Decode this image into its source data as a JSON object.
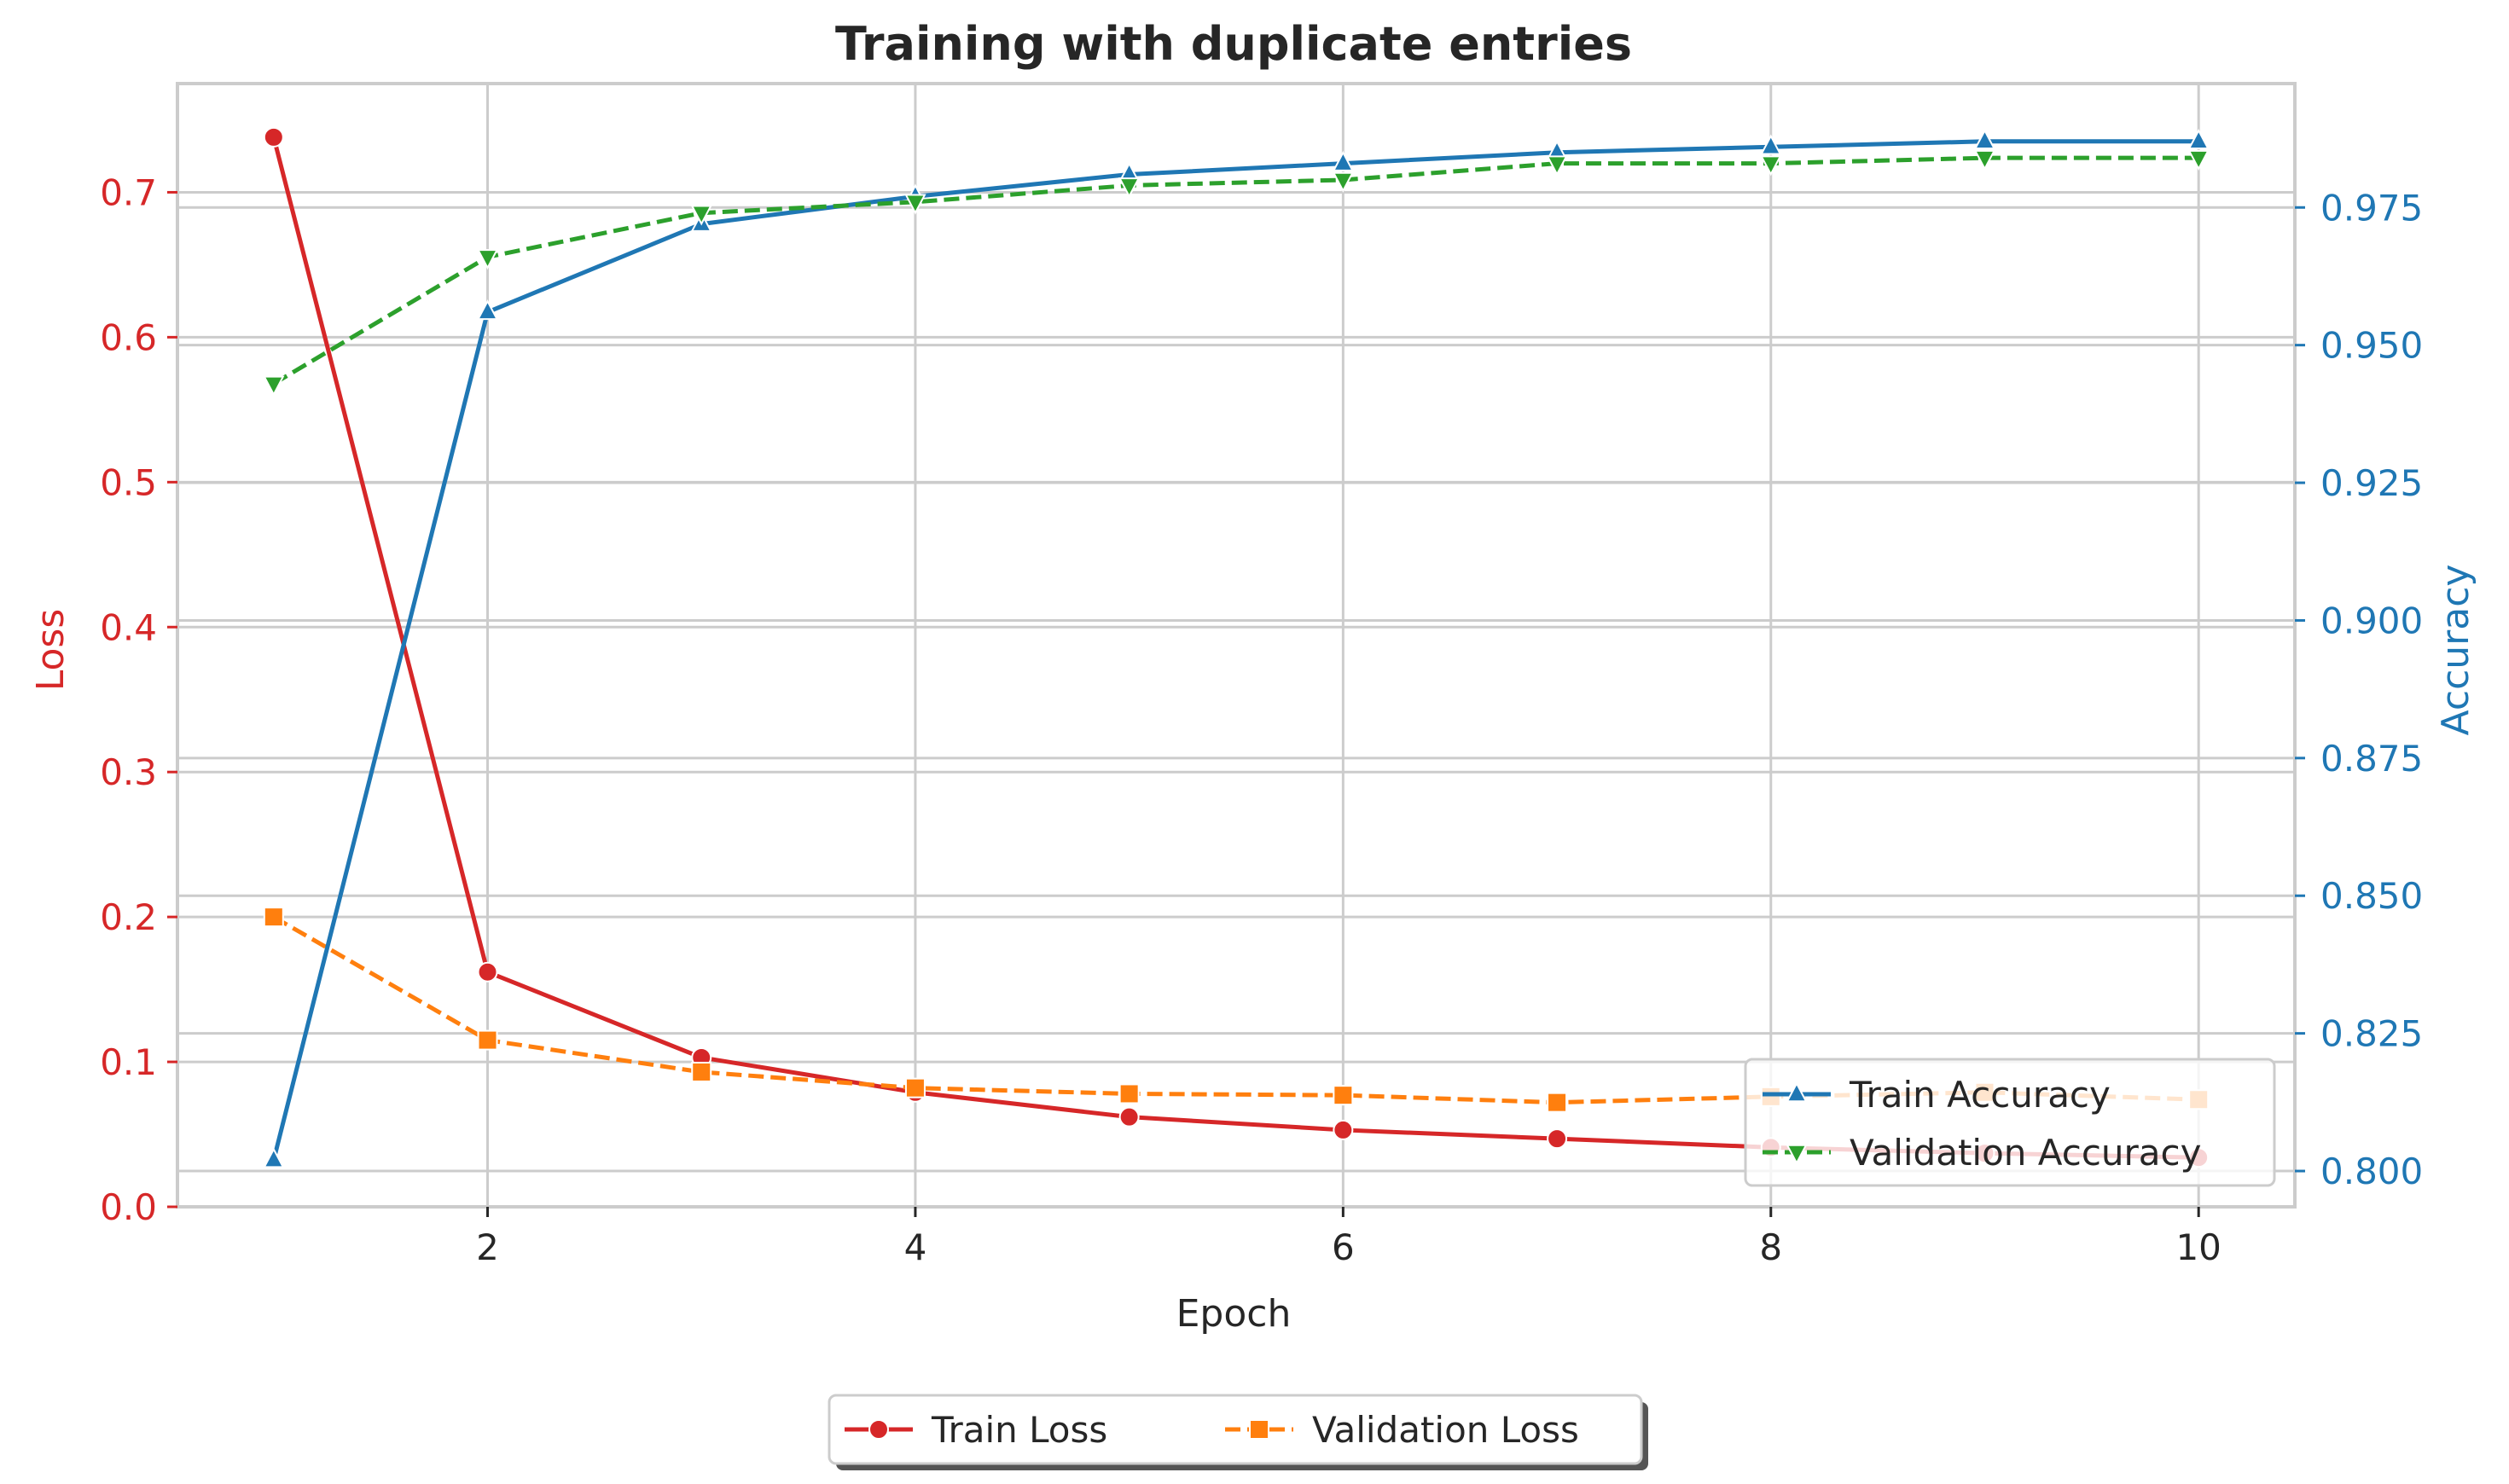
{
  "chart_data": {
    "type": "line",
    "title": "Training with duplicate entries",
    "xlabel": "Epoch",
    "ylabel_left": "Loss",
    "ylabel_right": "Accuracy",
    "xlim": [
      0.55,
      10.45
    ],
    "ylim_left": [
      0.0,
      0.775
    ],
    "ylim_right": [
      0.7935,
      0.9975
    ],
    "x_ticks": [
      2,
      4,
      6,
      8,
      10
    ],
    "y_ticks_left": [
      0.0,
      0.1,
      0.2,
      0.3,
      0.4,
      0.5,
      0.6,
      0.7
    ],
    "y_ticks_right": [
      0.8,
      0.825,
      0.85,
      0.875,
      0.9,
      0.925,
      0.95,
      0.975
    ],
    "grid": true,
    "x": [
      1,
      2,
      3,
      4,
      5,
      6,
      7,
      8,
      9,
      10
    ],
    "series": [
      {
        "name": "Train Loss",
        "axis": "left",
        "color": "#d62728",
        "dash": "solid",
        "marker": "circle",
        "values": [
          0.738,
          0.162,
          0.103,
          0.079,
          0.062,
          0.053,
          0.047,
          0.041,
          0.037,
          0.034
        ]
      },
      {
        "name": "Validation Loss",
        "axis": "left",
        "color": "#ff7f0e",
        "dash": "dashed",
        "marker": "square",
        "values": [
          0.2,
          0.115,
          0.093,
          0.082,
          0.078,
          0.077,
          0.072,
          0.076,
          0.079,
          0.074
        ]
      },
      {
        "name": "Train Accuracy",
        "axis": "right",
        "color": "#1f77b4",
        "dash": "solid",
        "marker": "triangle-up",
        "values": [
          0.802,
          0.956,
          0.972,
          0.977,
          0.981,
          0.983,
          0.985,
          0.986,
          0.987,
          0.987
        ]
      },
      {
        "name": "Validation Accuracy",
        "axis": "right",
        "color": "#2ca02c",
        "dash": "dashed",
        "marker": "triangle-down",
        "values": [
          0.943,
          0.966,
          0.974,
          0.976,
          0.979,
          0.98,
          0.983,
          0.983,
          0.984,
          0.984
        ]
      }
    ],
    "legend_accuracy": {
      "placement": "lower-right",
      "entries": [
        "Train Accuracy",
        "Validation Accuracy"
      ]
    },
    "legend_loss": {
      "placement": "below-chart-center",
      "entries": [
        "Train Loss",
        "Validation Loss"
      ]
    },
    "colors": {
      "loss_axis": "#d62728",
      "accuracy_axis": "#1f77b4",
      "grid": "#cccccc",
      "text": "#262626"
    }
  }
}
